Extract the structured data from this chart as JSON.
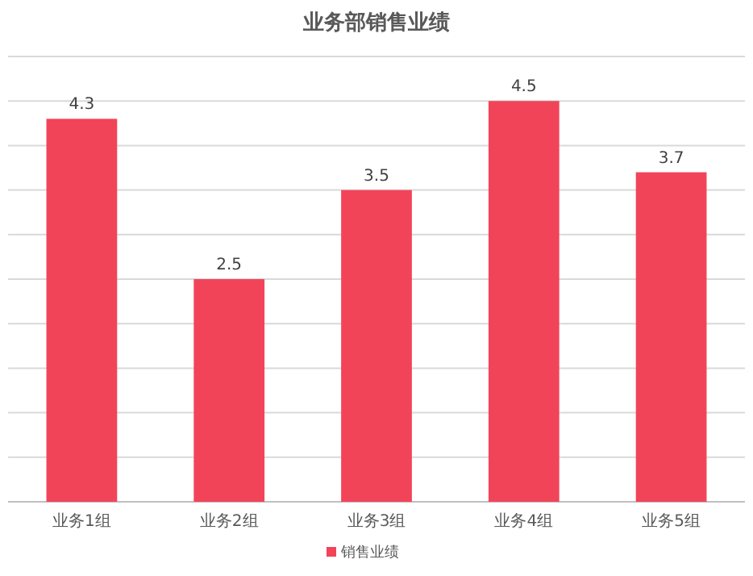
{
  "chart_data": {
    "type": "bar",
    "title": "业务部销售业绩",
    "categories": [
      "业务1组",
      "业务2组",
      "业务3组",
      "业务4组",
      "业务5组"
    ],
    "series": [
      {
        "name": "销售业绩",
        "color": "#f24459",
        "values": [
          4.3,
          2.5,
          3.5,
          4.5,
          3.7
        ]
      }
    ],
    "ylim": [
      0,
      5
    ],
    "yticks": [
      {
        "value": 0,
        "label": null
      },
      {
        "value": 0.5,
        "label": null
      },
      {
        "value": 1,
        "label": null
      },
      {
        "value": 1.5,
        "label": null
      },
      {
        "value": 2,
        "label": null
      },
      {
        "value": 2.5,
        "label": null
      },
      {
        "value": 3,
        "label": null
      },
      {
        "value": 3.5,
        "label": null
      },
      {
        "value": 4,
        "label": null
      },
      {
        "value": 4.5,
        "label": null
      },
      {
        "value": 5,
        "label": null
      }
    ],
    "tick_labels": "x",
    "grid": "y",
    "data_labels": true,
    "legend": "bottom"
  }
}
